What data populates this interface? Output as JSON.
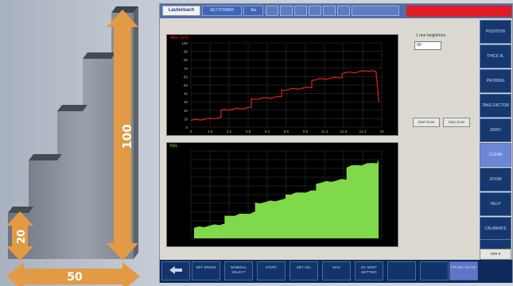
{
  "illustration": {
    "dim_height": "100",
    "dim_step": "20",
    "dim_width": "50"
  },
  "toolbar": {
    "logo": "Lauterbach",
    "tab1": "SET POWER",
    "tab2": "Stu"
  },
  "readout": {
    "label": "1 mm height/mm",
    "value": "00"
  },
  "plot1": {
    "title": "ABS (mm)",
    "trace_color": "#e2231a",
    "y_ticks": [
      "100",
      "90",
      "80",
      "70",
      "60",
      "50",
      "40",
      "30",
      "20",
      "10",
      "0"
    ],
    "x_ticks": [
      "0",
      "1.6",
      "3.2",
      "4.8",
      "6.4",
      "8.0",
      "9.6",
      "11.2",
      "12.8",
      "14.4",
      "16"
    ]
  },
  "plot2": {
    "title": "REL",
    "fill_color": "#7fd94a"
  },
  "mini_buttons": {
    "start": "Start Scan",
    "stop": "Stop Scan"
  },
  "side_buttons": [
    "POSITION",
    "THICK 9L",
    "PROBING",
    "TAKE FACTOR",
    "ZERO",
    "CLEAR",
    "ZOOM",
    "HELP",
    "CALIBRATE",
    "SETPROBE"
  ],
  "side_select": "mm ▾",
  "bottom_buttons": [
    "",
    "SET SPEED",
    "NOMINAL SELECT",
    "START",
    "SET VEL",
    "MAX",
    "DC MIN/T SETTING",
    "",
    "",
    ""
  ],
  "bottom_active_label": "PROBE SETUP"
}
